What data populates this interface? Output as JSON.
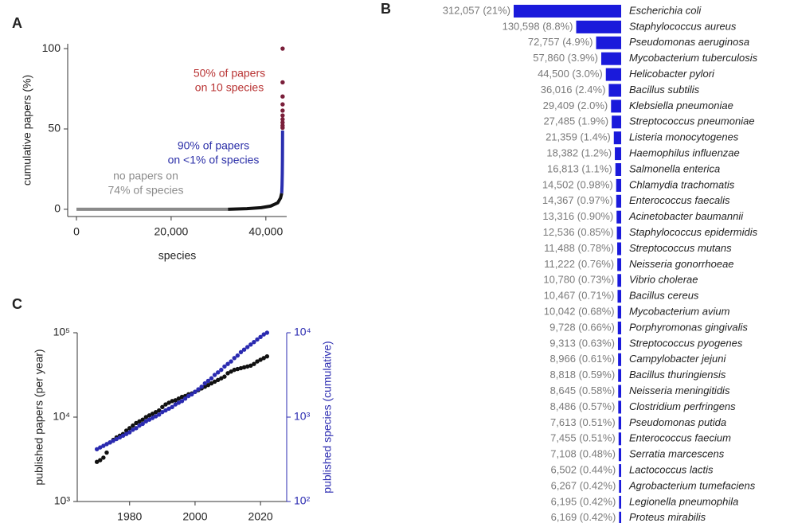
{
  "chart_data": [
    {
      "type": "scatter",
      "panel_label": "A",
      "xlabel": "species",
      "ylabel": "cumulative papers (%)",
      "xlim": [
        -1850,
        44400
      ],
      "ylim": [
        -4.5,
        103
      ],
      "xticks": [
        0,
        {
          "value": 20000,
          "label": "20,000"
        },
        {
          "value": 40000,
          "label": "40,000"
        }
      ],
      "yticks": [
        0,
        50,
        100
      ],
      "series": [
        {
          "color": "#8a8a8a",
          "mode": "line",
          "x": [
            0,
            32000
          ],
          "values": [
            0,
            0
          ]
        },
        {
          "color": "#111111",
          "mode": "line",
          "x": [
            32000,
            36000,
            39000,
            41000,
            42500,
            43100,
            43350
          ],
          "values": [
            0,
            0.4,
            1,
            2,
            4,
            7,
            10
          ]
        },
        {
          "color": "#2a2fb0",
          "mode": "line",
          "x": [
            43350,
            43420,
            43470,
            43500,
            43520,
            43530
          ],
          "values": [
            10,
            15,
            22,
            30,
            40,
            49
          ]
        },
        {
          "color": "#7a1f3a",
          "mode": "markers",
          "x": [
            43531,
            43532,
            43533,
            43534,
            43535,
            43536,
            43537,
            43538,
            43539,
            43540
          ],
          "values": [
            50.7,
            52.1,
            54.0,
            56.0,
            58.4,
            61.4,
            65.3,
            70.2,
            79.0,
            100
          ]
        }
      ],
      "annotations": [
        {
          "lines": [
            "50% of papers",
            "on 10 species"
          ],
          "color": "#b83232"
        },
        {
          "lines": [
            "90% of papers",
            "on <1% of species"
          ],
          "color": "#2b2fa8"
        },
        {
          "lines": [
            "no papers on",
            "74% of species"
          ],
          "color": "#8c8c8c"
        }
      ]
    },
    {
      "type": "barh",
      "panel_label": "B",
      "color": "#1a1adb",
      "label_color": "#7a7a7a",
      "categories": [
        "Escherichia coli",
        "Staphylococcus aureus",
        "Pseudomonas aeruginosa",
        "Mycobacterium tuberculosis",
        "Helicobacter pylori",
        "Bacillus subtilis",
        "Klebsiella pneumoniae",
        "Streptococcus pneumoniae",
        "Listeria monocytogenes",
        "Haemophilus influenzae",
        "Salmonella enterica",
        "Chlamydia trachomatis",
        "Enterococcus faecalis",
        "Acinetobacter baumannii",
        "Staphylococcus epidermidis",
        "Streptococcus mutans",
        "Neisseria gonorrhoeae",
        "Vibrio cholerae",
        "Bacillus cereus",
        "Mycobacterium avium",
        "Porphyromonas gingivalis",
        "Streptococcus pyogenes",
        "Campylobacter jejuni",
        "Bacillus thuringiensis",
        "Neisseria meningitidis",
        "Clostridium perfringens",
        "Pseudomonas putida",
        "Enterococcus faecium",
        "Serratia marcescens",
        "Lactococcus lactis",
        "Agrobacterium tumefaciens",
        "Legionella pneumophila",
        "Proteus mirabilis"
      ],
      "values": [
        312057,
        130598,
        72757,
        57860,
        44500,
        36016,
        29409,
        27485,
        21359,
        18382,
        16813,
        14502,
        14367,
        13316,
        12536,
        11488,
        11222,
        10780,
        10467,
        10042,
        9728,
        9313,
        8966,
        8818,
        8645,
        8486,
        7613,
        7455,
        7108,
        6502,
        6267,
        6195,
        6169
      ],
      "value_labels": [
        "312,057 (21%)",
        "130,598 (8.8%)",
        "72,757 (4.9%)",
        "57,860 (3.9%)",
        "44,500 (3.0%)",
        "36,016 (2.4%)",
        "29,409 (2.0%)",
        "27,485 (1.9%)",
        "21,359 (1.4%)",
        "18,382 (1.2%)",
        "16,813 (1.1%)",
        "14,502 (0.98%)",
        "14,367 (0.97%)",
        "13,316 (0.90%)",
        "12,536 (0.85%)",
        "11,488 (0.78%)",
        "11,222 (0.76%)",
        "10,780 (0.73%)",
        "10,467 (0.71%)",
        "10,042 (0.68%)",
        "9,728 (0.66%)",
        "9,313 (0.63%)",
        "8,966 (0.61%)",
        "8,818 (0.59%)",
        "8,645 (0.58%)",
        "8,486 (0.57%)",
        "7,613 (0.51%)",
        "7,455 (0.51%)",
        "7,108 (0.48%)",
        "6,502 (0.44%)",
        "6,267 (0.42%)",
        "6,195 (0.42%)",
        "6,169 (0.42%)"
      ]
    },
    {
      "type": "scatter",
      "panel_label": "C",
      "ylabel": "published papers (per year)",
      "y2label": "published species (cumulative)",
      "y2_color": "#2a2ab0",
      "xlim": [
        1964,
        2028
      ],
      "xticks": [
        1980,
        2000,
        2020
      ],
      "ylog": true,
      "ylim": [
        1000,
        100000
      ],
      "yticks": [
        {
          "value": 1000,
          "label": "10³"
        },
        {
          "value": 10000,
          "label": "10⁴"
        },
        {
          "value": 100000,
          "label": "10⁵"
        }
      ],
      "y2log": true,
      "y2lim": [
        100,
        10000
      ],
      "y2ticks": [
        {
          "value": 100,
          "label": "10²"
        },
        {
          "value": 1000,
          "label": "10³"
        },
        {
          "value": 10000,
          "label": "10⁴"
        }
      ],
      "x": [
        1970,
        1971,
        1972,
        1973,
        1974,
        1975,
        1976,
        1977,
        1978,
        1979,
        1980,
        1981,
        1982,
        1983,
        1984,
        1985,
        1986,
        1987,
        1988,
        1989,
        1990,
        1991,
        1992,
        1993,
        1994,
        1995,
        1996,
        1997,
        1998,
        1999,
        2000,
        2001,
        2002,
        2003,
        2004,
        2005,
        2006,
        2007,
        2008,
        2009,
        2010,
        2011,
        2012,
        2013,
        2014,
        2015,
        2016,
        2017,
        2018,
        2019,
        2020,
        2021,
        2022
      ],
      "series": [
        {
          "color": "#111111",
          "mode": "markers",
          "axis": "y",
          "values": [
            2950,
            3090,
            3310,
            3800,
            5010,
            5370,
            5750,
            6030,
            6310,
            6920,
            7410,
            7940,
            8510,
            8910,
            9330,
            10000,
            10470,
            10960,
            11480,
            12020,
            13180,
            14130,
            14790,
            15490,
            15850,
            16600,
            17380,
            17780,
            18620,
            19050,
            19950,
            20890,
            21880,
            22910,
            23990,
            25120,
            26300,
            27540,
            28840,
            30200,
            33110,
            34670,
            36310,
            37150,
            38020,
            38900,
            39810,
            40740,
            42660,
            45710,
            47860,
            50120,
            52480
          ]
        },
        {
          "color": "#2a2ab0",
          "mode": "markers",
          "axis": "y2",
          "values": [
            417,
            437,
            457,
            479,
            501,
            525,
            550,
            575,
            603,
            631,
            661,
            708,
            741,
            794,
            832,
            891,
            933,
            977,
            1023,
            1072,
            1148,
            1202,
            1259,
            1318,
            1413,
            1479,
            1549,
            1660,
            1778,
            1862,
            1995,
            2138,
            2291,
            2512,
            2692,
            2884,
            3162,
            3388,
            3631,
            3981,
            4266,
            4571,
            5012,
            5370,
            5888,
            6310,
            6761,
            7244,
            7762,
            8318,
            8913,
            9550,
            10000
          ]
        }
      ]
    }
  ]
}
